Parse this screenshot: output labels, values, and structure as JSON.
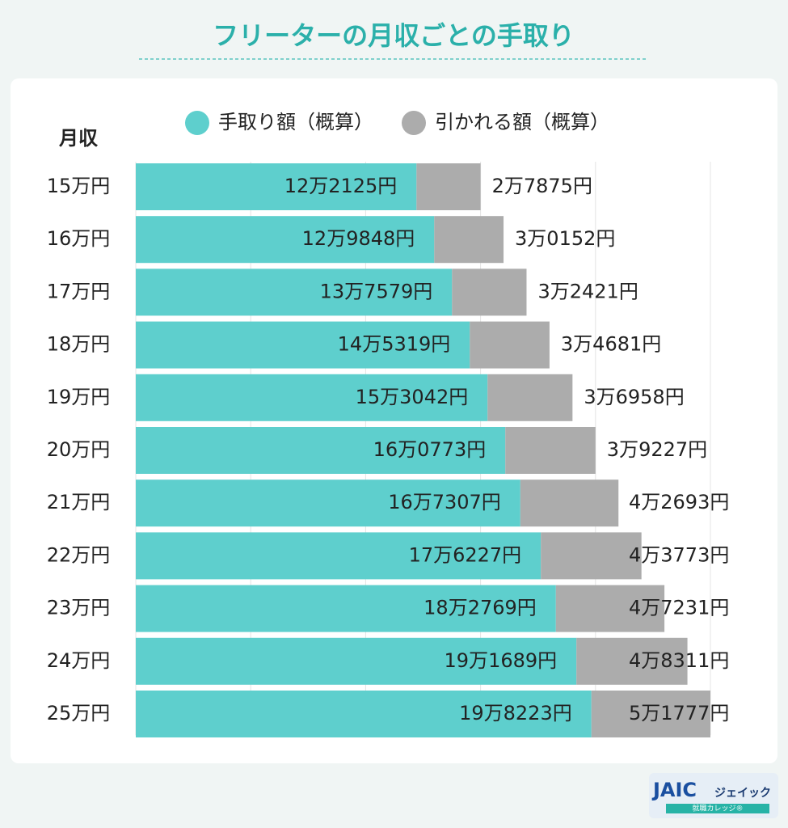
{
  "chart_data": {
    "type": "stacked-barh",
    "title": "フリーターの月収ごとの手取り",
    "ylabel": "月収",
    "categories": [
      "15万円",
      "16万円",
      "17万円",
      "18万円",
      "19万円",
      "20万円",
      "21万円",
      "22万円",
      "23万円",
      "24万円",
      "25万円"
    ],
    "series": [
      {
        "name": "手取り額（概算）",
        "color": "#5ecfcd",
        "values": [
          122125,
          129848,
          137579,
          145319,
          153042,
          160773,
          167307,
          176227,
          182769,
          191689,
          198223
        ],
        "value_labels": [
          "12万2125円",
          "12万9848円",
          "13万7579円",
          "14万5319円",
          "15万3042円",
          "16万0773円",
          "16万7307円",
          "17万6227円",
          "18万2769円",
          "19万1689円",
          "19万8223円"
        ]
      },
      {
        "name": "引かれる額（概算）",
        "color": "#acacac",
        "values": [
          27875,
          30152,
          32421,
          34681,
          36958,
          39227,
          42693,
          43773,
          47231,
          48311,
          51777
        ],
        "value_labels": [
          "2万7875円",
          "3万0152円",
          "3万2421円",
          "3万4681円",
          "3万6958円",
          "3万9227円",
          "4万2693円",
          "4万3773円",
          "4万7231円",
          "4万8311円",
          "5万1777円"
        ]
      }
    ],
    "xlim": [
      0,
      250000
    ],
    "xticks": [
      0,
      50000,
      100000,
      150000,
      200000,
      250000
    ],
    "grid": true,
    "legend": "top"
  },
  "logo": {
    "mark": "JAIC",
    "name": "ジェイック",
    "tagline": "就職カレッジ®"
  }
}
